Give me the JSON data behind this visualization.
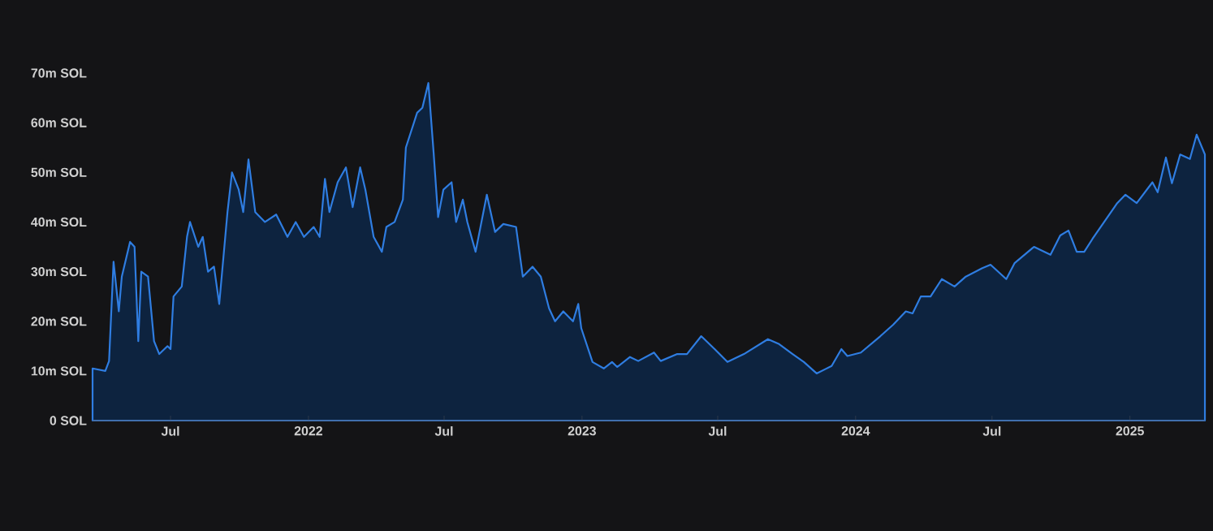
{
  "chart_data": {
    "type": "area",
    "x": [
      "2021-03-19",
      "2021-04-05",
      "2021-04-10",
      "2021-04-16",
      "2021-04-23",
      "2021-04-27",
      "2021-05-08",
      "2021-05-14",
      "2021-05-19",
      "2021-05-23",
      "2021-06-01",
      "2021-06-09",
      "2021-06-16",
      "2021-06-27",
      "2021-07-01",
      "2021-07-05",
      "2021-07-16",
      "2021-07-23",
      "2021-07-27",
      "2021-08-07",
      "2021-08-13",
      "2021-08-20",
      "2021-08-28",
      "2021-09-04",
      "2021-09-15",
      "2021-09-21",
      "2021-09-30",
      "2021-10-06",
      "2021-10-13",
      "2021-10-22",
      "2021-11-04",
      "2021-11-19",
      "2021-12-04",
      "2021-12-15",
      "2021-12-26",
      "2022-01-08",
      "2022-01-16",
      "2022-01-23",
      "2022-01-29",
      "2022-02-09",
      "2022-02-20",
      "2022-03-01",
      "2022-03-11",
      "2022-03-18",
      "2022-03-29",
      "2022-04-09",
      "2022-04-15",
      "2022-04-26",
      "2022-05-07",
      "2022-05-11",
      "2022-05-26",
      "2022-06-02",
      "2022-06-10",
      "2022-06-17",
      "2022-06-23",
      "2022-06-30",
      "2022-07-11",
      "2022-07-17",
      "2022-07-26",
      "2022-08-01",
      "2022-08-12",
      "2022-08-27",
      "2022-09-07",
      "2022-09-18",
      "2022-10-05",
      "2022-10-14",
      "2022-10-27",
      "2022-11-07",
      "2022-11-18",
      "2022-11-26",
      "2022-12-07",
      "2022-12-20",
      "2022-12-27",
      "2022-12-31",
      "2023-01-15",
      "2023-01-30",
      "2023-02-10",
      "2023-02-17",
      "2023-03-06",
      "2023-03-17",
      "2023-04-07",
      "2023-04-16",
      "2023-05-08",
      "2023-05-21",
      "2023-06-09",
      "2023-06-27",
      "2023-07-14",
      "2023-08-05",
      "2023-09-06",
      "2023-09-21",
      "2023-10-09",
      "2023-10-24",
      "2023-11-10",
      "2023-11-30",
      "2023-12-13",
      "2023-12-21",
      "2024-01-08",
      "2024-02-03",
      "2024-02-20",
      "2024-03-08",
      "2024-03-17",
      "2024-03-28",
      "2024-04-10",
      "2024-04-25",
      "2024-05-12",
      "2024-05-27",
      "2024-06-18",
      "2024-06-29",
      "2024-07-20",
      "2024-07-31",
      "2024-08-26",
      "2024-09-17",
      "2024-09-30",
      "2024-10-11",
      "2024-10-22",
      "2024-11-01",
      "2024-11-12",
      "2024-12-15",
      "2024-12-26",
      "2025-01-10",
      "2025-01-31",
      "2025-02-07",
      "2025-02-18",
      "2025-02-26",
      "2025-03-09",
      "2025-03-22",
      "2025-03-31",
      "2025-04-11"
    ],
    "series": [
      {
        "color": "#2f7de1",
        "values": [
          10.5,
          10,
          12,
          32,
          22,
          29,
          36,
          35,
          16,
          30,
          29,
          16,
          13.4,
          15,
          14.4,
          25,
          27,
          37,
          40,
          35,
          37,
          30,
          31,
          23.5,
          42,
          50,
          46.5,
          42,
          52.6,
          42,
          40,
          41.5,
          37,
          40,
          37,
          39,
          37,
          48.7,
          42,
          48,
          51,
          43,
          51,
          46.5,
          37,
          34,
          39,
          40,
          44.5,
          55,
          62,
          63,
          68,
          54,
          41,
          46.5,
          48,
          40,
          44.5,
          40,
          34,
          45.5,
          38,
          39.6,
          39,
          29,
          31,
          29,
          22.6,
          20,
          22,
          20,
          23.5,
          18.6,
          11.8,
          10.5,
          11.8,
          10.8,
          12.8,
          12,
          13.7,
          12,
          13.4,
          13.4,
          17,
          14.4,
          11.8,
          13.4,
          16.4,
          15.4,
          13.4,
          11.8,
          9.5,
          11,
          14.4,
          13,
          13.7,
          17,
          19.3,
          22,
          21.6,
          25,
          25,
          28.5,
          27,
          29,
          30.7,
          31.4,
          28.5,
          31.7,
          35,
          33.4,
          37.3,
          38.3,
          34,
          34,
          36.6,
          43.8,
          45.5,
          43.8,
          48,
          46,
          53,
          47.8,
          53.6,
          52.7,
          57.6,
          53.6
        ]
      }
    ],
    "xlim": [
      "2021-03-19",
      "2025-04-11"
    ],
    "xticks": [
      {
        "value": "2021-07-01",
        "label": "Jul"
      },
      {
        "value": "2022-01-01",
        "label": "2022"
      },
      {
        "value": "2022-07-01",
        "label": "Jul"
      },
      {
        "value": "2023-01-01",
        "label": "2023"
      },
      {
        "value": "2023-07-01",
        "label": "Jul"
      },
      {
        "value": "2024-01-01",
        "label": "2024"
      },
      {
        "value": "2024-07-01",
        "label": "Jul"
      },
      {
        "value": "2025-01-01",
        "label": "2025"
      }
    ],
    "ylim": [
      0,
      70
    ],
    "yticks": [
      {
        "value": 0,
        "label": "0 SOL"
      },
      {
        "value": 10,
        "label": "10m SOL"
      },
      {
        "value": 20,
        "label": "20m SOL"
      },
      {
        "value": 30,
        "label": "30m SOL"
      },
      {
        "value": 40,
        "label": "40m SOL"
      },
      {
        "value": 50,
        "label": "50m SOL"
      },
      {
        "value": 60,
        "label": "60m SOL"
      },
      {
        "value": 70,
        "label": "70m SOL"
      }
    ]
  }
}
